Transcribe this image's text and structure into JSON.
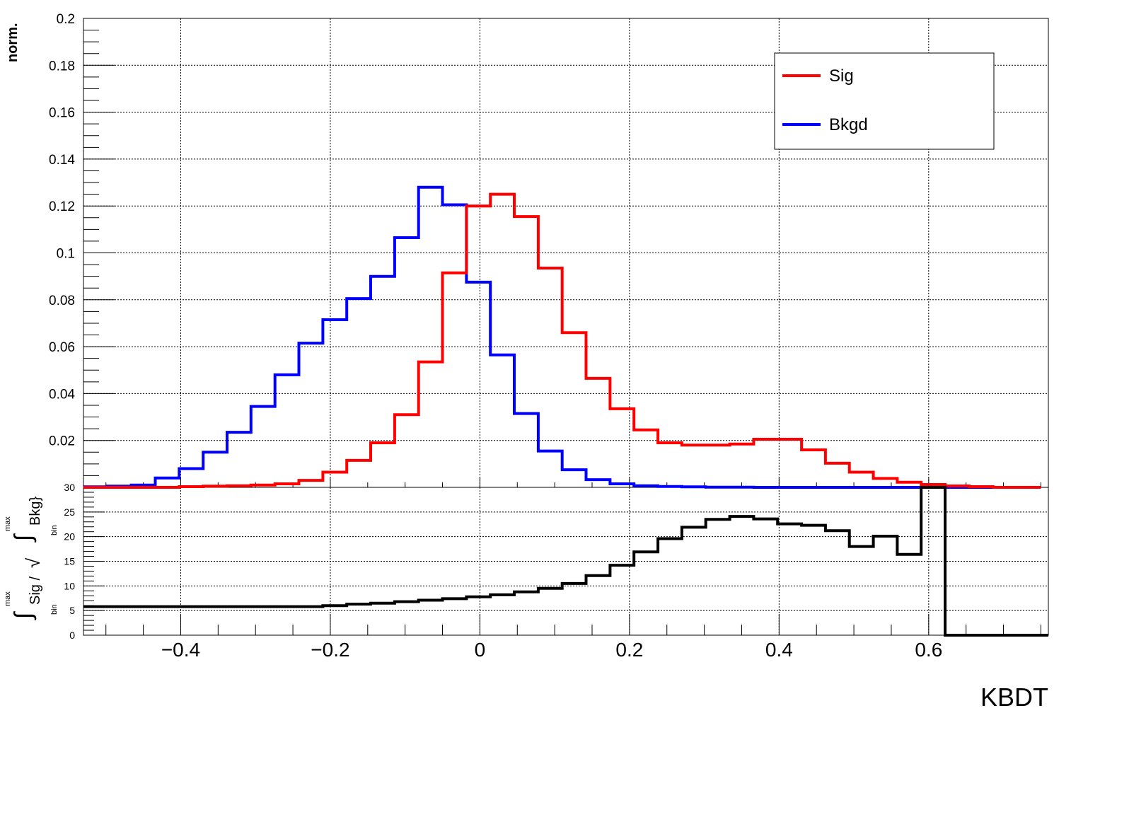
{
  "chart_data": [
    {
      "type": "step",
      "panel": "upper",
      "ylabel": "norm.",
      "ylim": [
        0,
        0.2
      ],
      "xlim": [
        -0.53,
        0.76
      ],
      "yticks": [
        "0.02",
        "0.04",
        "0.06",
        "0.08",
        "0.1",
        "0.12",
        "0.14",
        "0.16",
        "0.18",
        "0.2"
      ],
      "ytick_values": [
        0.02,
        0.04,
        0.06,
        0.08,
        0.1,
        0.12,
        0.14,
        0.16,
        0.18,
        0.2
      ],
      "grid": true,
      "legend_position": "top-right",
      "bin_edges": [
        -0.53,
        -0.498,
        -0.466,
        -0.434,
        -0.402,
        -0.37,
        -0.338,
        -0.306,
        -0.274,
        -0.242,
        -0.21,
        -0.178,
        -0.146,
        -0.114,
        -0.082,
        -0.05,
        -0.018,
        0.014,
        0.046,
        0.078,
        0.11,
        0.142,
        0.174,
        0.206,
        0.238,
        0.27,
        0.302,
        0.334,
        0.366,
        0.398,
        0.43,
        0.462,
        0.494,
        0.526,
        0.558,
        0.59,
        0.622,
        0.654,
        0.686,
        0.718,
        0.75
      ],
      "series": [
        {
          "name": "Sig",
          "color": "#ff0000",
          "values": [
            0.0,
            0.0,
            0.0,
            0.0,
            0.0003,
            0.0005,
            0.0007,
            0.001,
            0.0015,
            0.003,
            0.0065,
            0.0115,
            0.019,
            0.031,
            0.0535,
            0.0915,
            0.12,
            0.125,
            0.1155,
            0.0935,
            0.066,
            0.0465,
            0.0335,
            0.0245,
            0.019,
            0.018,
            0.018,
            0.0185,
            0.0205,
            0.0205,
            0.016,
            0.0103,
            0.0065,
            0.0038,
            0.0022,
            0.0012,
            0.0006,
            0.0003,
            0.0,
            0.0
          ]
        },
        {
          "name": "Bkgd",
          "color": "#0000ff",
          "values": [
            0.0002,
            0.0005,
            0.001,
            0.004,
            0.008,
            0.015,
            0.0235,
            0.0345,
            0.048,
            0.0615,
            0.0715,
            0.0805,
            0.09,
            0.1065,
            0.128,
            0.1205,
            0.0875,
            0.0565,
            0.0315,
            0.0155,
            0.0075,
            0.0033,
            0.0015,
            0.0007,
            0.0004,
            0.0002,
            0.0001,
            0.0001,
            0.0,
            0.0,
            0.0,
            0.0,
            0.0,
            0.0,
            0.0,
            0.0,
            0.0,
            0.0,
            0.0,
            0.0
          ]
        }
      ]
    },
    {
      "type": "step",
      "panel": "lower",
      "ylabel_parts": {
        "int_sym": "∫",
        "max": "max",
        "bin": "bin",
        "sig": "Sig / ",
        "sqrt": "√",
        "bkg": "Bkg}"
      },
      "ylim": [
        0,
        30
      ],
      "xlim": [
        -0.53,
        0.76
      ],
      "yticks": [
        "0",
        "5",
        "10",
        "15",
        "20",
        "25",
        "30"
      ],
      "ytick_values": [
        0,
        5,
        10,
        15,
        20,
        25,
        30
      ],
      "xticks": [
        "−0.4",
        "−0.2",
        "0",
        "0.2",
        "0.4",
        "0.6"
      ],
      "xtick_values": [
        -0.4,
        -0.2,
        0,
        0.2,
        0.4,
        0.6
      ],
      "xlabel": "KBDT",
      "grid": true,
      "series": [
        {
          "color": "#000000",
          "bin_edges": [
            -0.53,
            -0.21,
            -0.178,
            -0.146,
            -0.114,
            -0.082,
            -0.05,
            -0.018,
            0.014,
            0.046,
            0.078,
            0.11,
            0.142,
            0.174,
            0.206,
            0.238,
            0.27,
            0.302,
            0.334,
            0.366,
            0.398,
            0.43,
            0.462,
            0.494,
            0.526,
            0.558,
            0.59,
            0.622,
            0.76
          ],
          "values": [
            5.8,
            6.0,
            6.3,
            6.5,
            6.8,
            7.1,
            7.4,
            7.8,
            8.2,
            8.8,
            9.5,
            10.5,
            12.1,
            14.2,
            16.9,
            19.6,
            21.9,
            23.5,
            24.1,
            23.6,
            22.6,
            22.3,
            21.2,
            18.0,
            20.1,
            16.4,
            31.0,
            0.0
          ]
        }
      ]
    }
  ]
}
